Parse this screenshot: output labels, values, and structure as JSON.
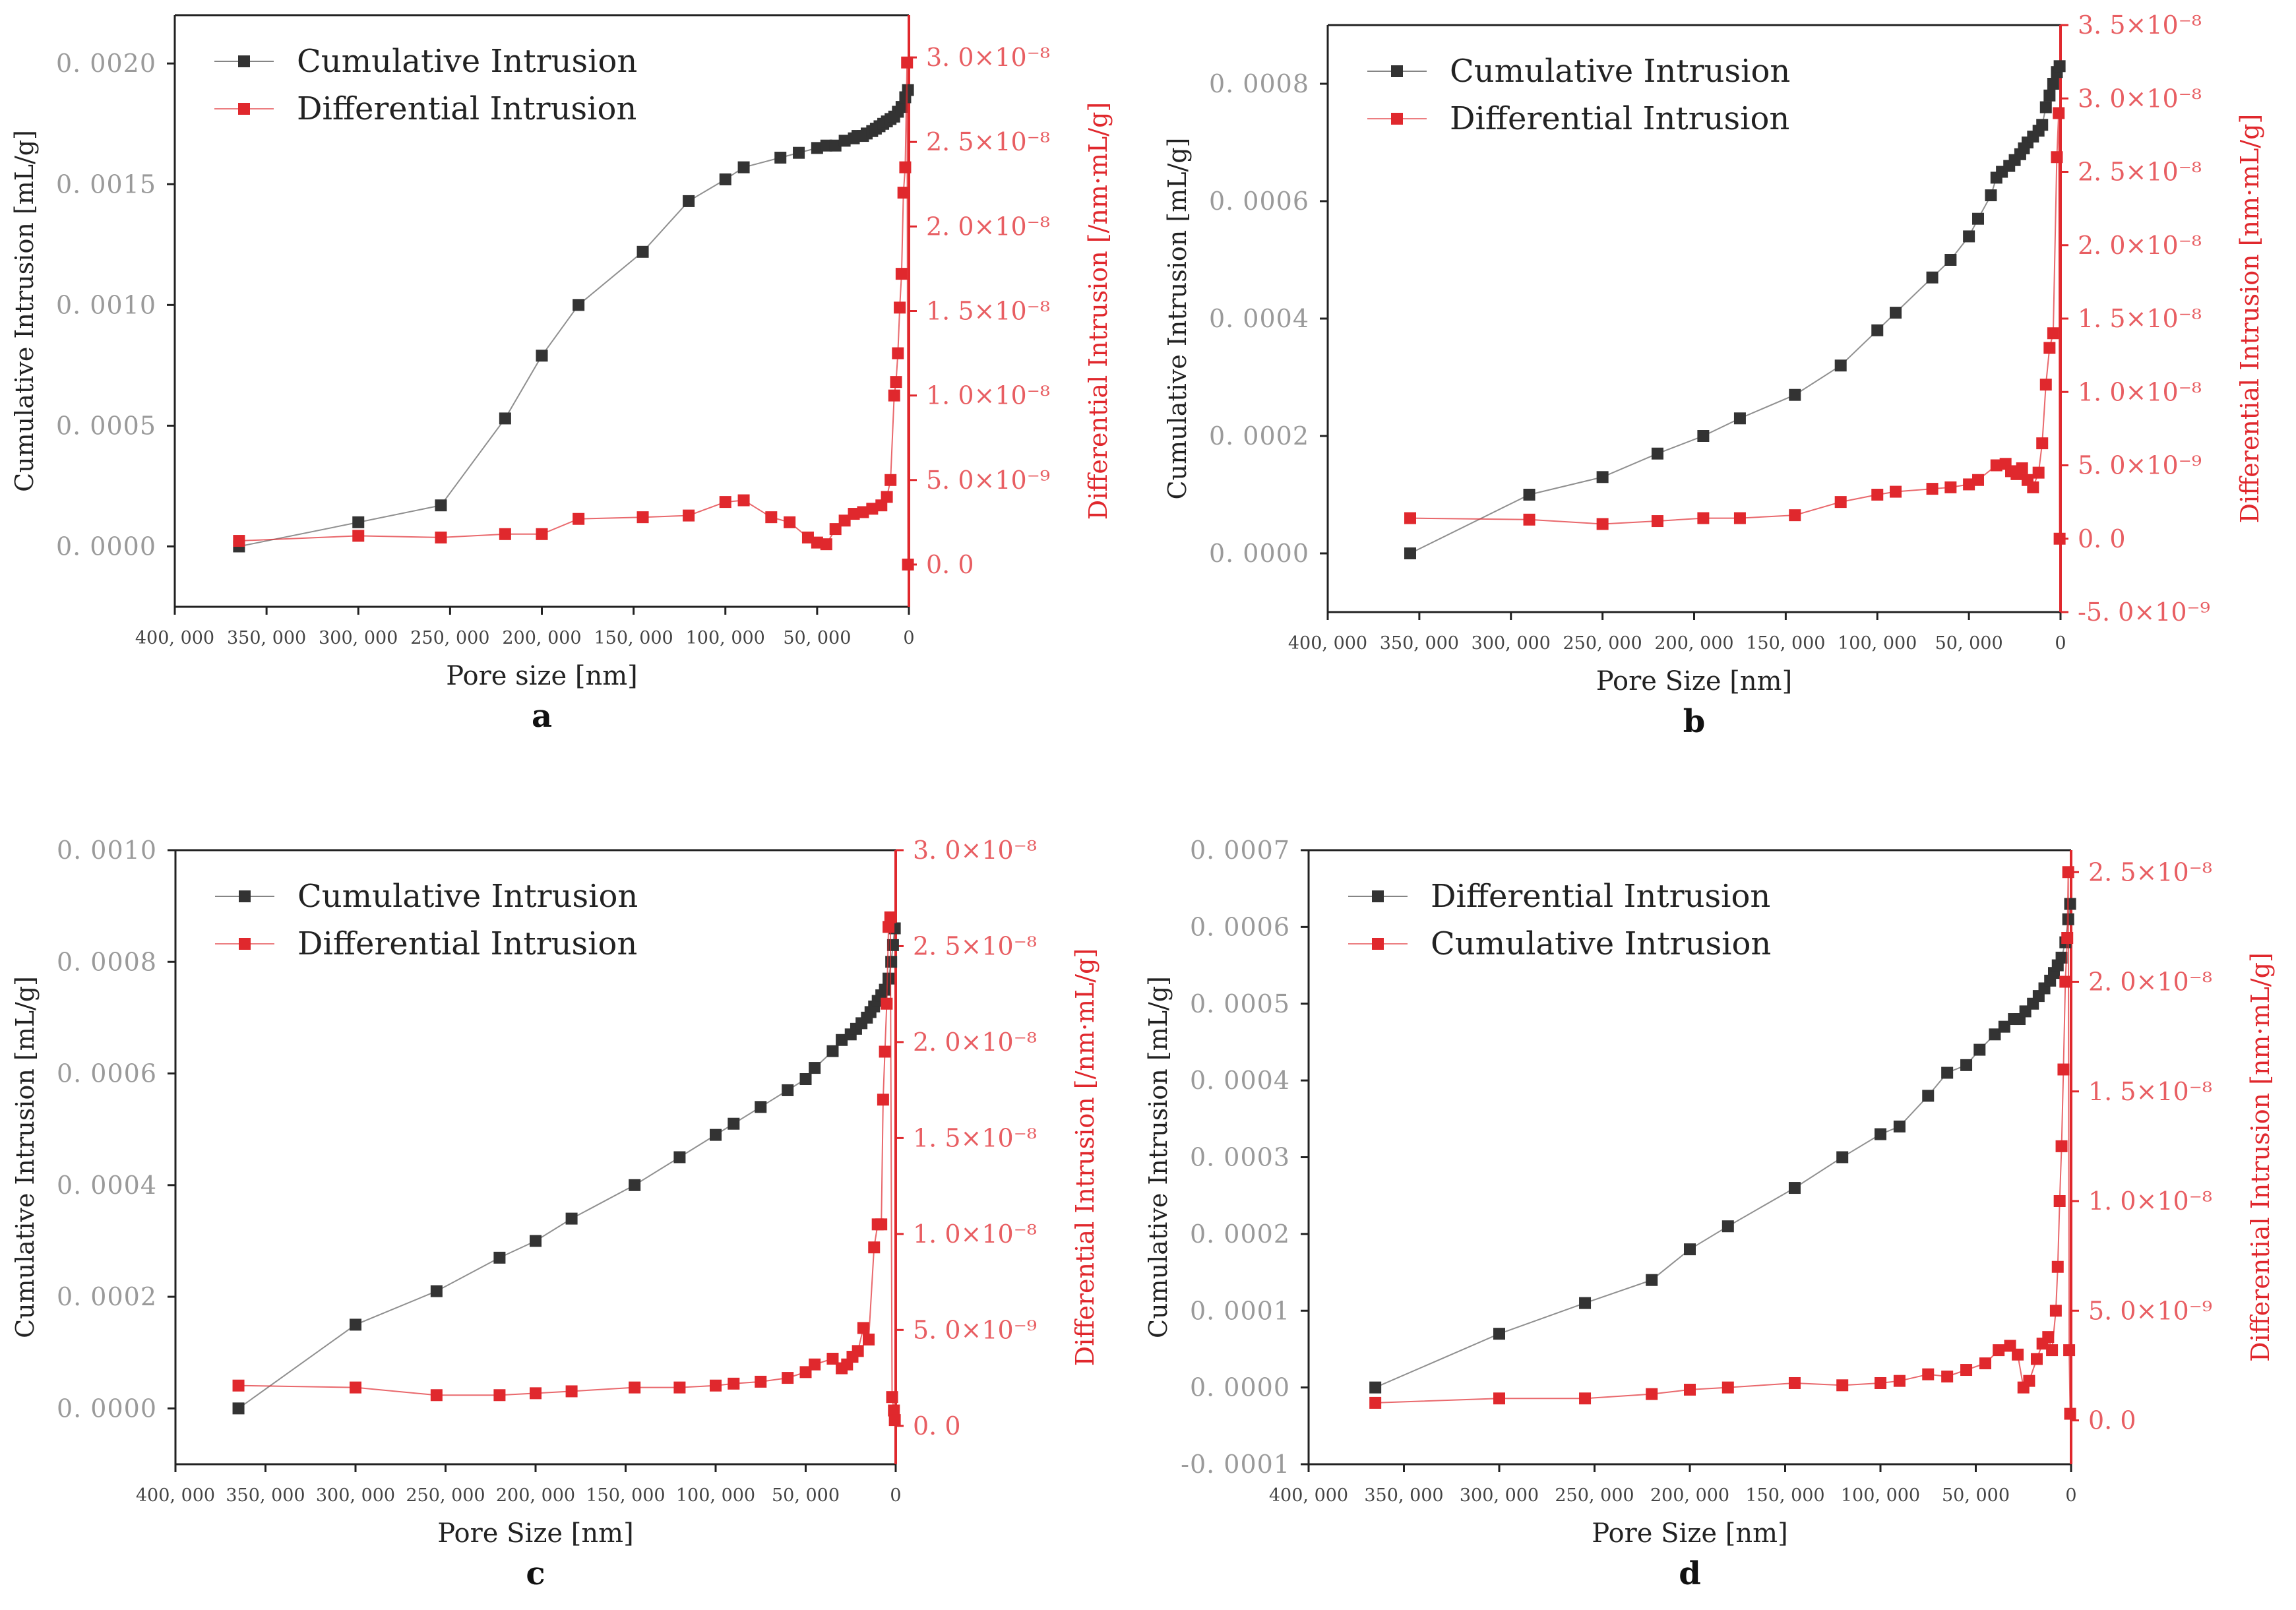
{
  "colors": {
    "cumulative": "#333333",
    "differential": "#e0282d",
    "axis": "#222222",
    "right_axis": "#e0282d",
    "tick_text": "#9a9a9a"
  },
  "chart_data": [
    {
      "type": "scatter",
      "panel_label": "a",
      "xlabel": "Pore size [nm]",
      "ylabel_left": "Cumulative Intrusion [mL/g]",
      "ylabel_right": "Differential Intrusion [/nm·mL/g]",
      "xlim": [
        400000,
        0
      ],
      "ylim_left": [
        -0.00025,
        0.0022
      ],
      "ylim_right": [
        -2.5e-09,
        3.25e-08
      ],
      "x_ticks": [
        "400, 000",
        "350, 000",
        "300, 000",
        "250, 000",
        "200, 000",
        "150, 000",
        "100, 000",
        "50, 000",
        "0"
      ],
      "x_tick_values": [
        400000,
        350000,
        300000,
        250000,
        200000,
        150000,
        100000,
        50000,
        0
      ],
      "y_ticks_left": [
        "0. 0000",
        "0. 0005",
        "0. 0010",
        "0. 0015",
        "0. 0020"
      ],
      "y_tick_values_left": [
        0,
        0.0005,
        0.001,
        0.0015,
        0.002
      ],
      "y_ticks_right": [
        "0. 0",
        "5. 0×10⁻⁹",
        "1. 0×10⁻⁸",
        "1. 5×10⁻⁸",
        "2. 0×10⁻⁸",
        "2. 5×10⁻⁸",
        "3. 0×10⁻⁸"
      ],
      "y_tick_values_right": [
        0,
        5e-09,
        1e-08,
        1.5e-08,
        2e-08,
        2.5e-08,
        3e-08
      ],
      "legend": [
        "Cumulative Intrusion",
        "Differential Intrusion"
      ],
      "series": [
        {
          "name": "Cumulative Intrusion",
          "axis": "left",
          "x": [
            365000,
            300000,
            255000,
            220000,
            200000,
            180000,
            145000,
            120000,
            100000,
            90000,
            70000,
            60000,
            50000,
            45000,
            40000,
            35000,
            30000,
            28000,
            25000,
            23000,
            20000,
            18000,
            16000,
            14000,
            12000,
            10000,
            8000,
            6000,
            4000,
            2000,
            500
          ],
          "y": [
            0.0,
            0.0001,
            0.00017,
            0.00053,
            0.00079,
            0.001,
            0.00122,
            0.00143,
            0.00152,
            0.00157,
            0.00161,
            0.00163,
            0.00165,
            0.00166,
            0.00166,
            0.00168,
            0.00169,
            0.0017,
            0.0017,
            0.00171,
            0.00172,
            0.00173,
            0.00174,
            0.00175,
            0.00176,
            0.00177,
            0.00178,
            0.0018,
            0.00182,
            0.00186,
            0.00189
          ]
        },
        {
          "name": "Differential Intrusion",
          "axis": "right",
          "x": [
            365000,
            300000,
            255000,
            220000,
            200000,
            180000,
            145000,
            120000,
            100000,
            90000,
            75000,
            65000,
            55000,
            50000,
            45000,
            40000,
            35000,
            30000,
            25000,
            20000,
            15000,
            12000,
            10000,
            8000,
            7000,
            6000,
            5000,
            4000,
            3000,
            2000,
            1000,
            500
          ],
          "y": [
            1.4e-09,
            1.7e-09,
            1.6e-09,
            1.8e-09,
            1.8e-09,
            2.7e-09,
            2.8e-09,
            2.9e-09,
            3.7e-09,
            3.8e-09,
            2.8e-09,
            2.5e-09,
            1.6e-09,
            1.3e-09,
            1.2e-09,
            2.1e-09,
            2.6e-09,
            3e-09,
            3.1e-09,
            3.3e-09,
            3.5e-09,
            4e-09,
            5e-09,
            1e-08,
            1.08e-08,
            1.25e-08,
            1.52e-08,
            1.72e-08,
            2.2e-08,
            2.35e-08,
            2.97e-08,
            0.0
          ]
        }
      ]
    },
    {
      "type": "scatter",
      "panel_label": "b",
      "xlabel": "Pore Size [nm]",
      "ylabel_left": "Cumulative Intrusion [mL/g]",
      "ylabel_right": "Differential Intrusion [nm·mL/g]",
      "xlim": [
        400000,
        0
      ],
      "ylim_left": [
        -0.0001,
        0.0009
      ],
      "ylim_right": [
        -5e-09,
        3.5e-08
      ],
      "x_ticks": [
        "400, 000",
        "350, 000",
        "300, 000",
        "250, 000",
        "200, 000",
        "150, 000",
        "100, 000",
        "50, 000",
        "0"
      ],
      "x_tick_values": [
        400000,
        350000,
        300000,
        250000,
        200000,
        150000,
        100000,
        50000,
        0
      ],
      "y_ticks_left": [
        "0. 0000",
        "0. 0002",
        "0. 0004",
        "0. 0006",
        "0. 0008"
      ],
      "y_tick_values_left": [
        0,
        0.0002,
        0.0004,
        0.0006,
        0.0008
      ],
      "y_ticks_right": [
        "-5. 0×10⁻⁹",
        "0. 0",
        "5. 0×10⁻⁹",
        "1. 0×10⁻⁸",
        "1. 5×10⁻⁸",
        "2. 0×10⁻⁸",
        "2. 5×10⁻⁸",
        "3. 0×10⁻⁸",
        "3. 5×10⁻⁸"
      ],
      "y_tick_values_right": [
        -5e-09,
        0,
        5e-09,
        1e-08,
        1.5e-08,
        2e-08,
        2.5e-08,
        3e-08,
        3.5e-08
      ],
      "legend": [
        "Cumulative Intrusion",
        "Differential Intrusion"
      ],
      "series": [
        {
          "name": "Cumulative Intrusion",
          "axis": "left",
          "x": [
            355000,
            290000,
            250000,
            220000,
            195000,
            175000,
            145000,
            120000,
            100000,
            90000,
            70000,
            60000,
            50000,
            45000,
            38000,
            35000,
            32000,
            28000,
            25000,
            22000,
            20000,
            18000,
            15000,
            12000,
            10000,
            8000,
            6000,
            4000,
            2000,
            500
          ],
          "y": [
            0.0,
            0.0001,
            0.00013,
            0.00017,
            0.0002,
            0.00023,
            0.00027,
            0.00032,
            0.00038,
            0.00041,
            0.00047,
            0.0005,
            0.00054,
            0.00057,
            0.00061,
            0.00064,
            0.00065,
            0.00066,
            0.00067,
            0.00068,
            0.00069,
            0.0007,
            0.00071,
            0.00072,
            0.00073,
            0.00076,
            0.00078,
            0.0008,
            0.00082,
            0.00083
          ]
        },
        {
          "name": "Differential Intrusion",
          "axis": "right",
          "x": [
            355000,
            290000,
            250000,
            220000,
            195000,
            175000,
            145000,
            120000,
            100000,
            90000,
            70000,
            60000,
            50000,
            45000,
            35000,
            30000,
            27000,
            24000,
            21000,
            18000,
            15000,
            12000,
            10000,
            8000,
            6000,
            4000,
            2000,
            1000,
            500
          ],
          "y": [
            1.4e-09,
            1.3e-09,
            1e-09,
            1.2e-09,
            1.4e-09,
            1.4e-09,
            1.6e-09,
            2.5e-09,
            3e-09,
            3.2e-09,
            3.4e-09,
            3.5e-09,
            3.7e-09,
            4e-09,
            5e-09,
            5.1e-09,
            4.6e-09,
            4.4e-09,
            4.8e-09,
            4e-09,
            3.5e-09,
            4.5e-09,
            6.5e-09,
            1.05e-08,
            1.3e-08,
            1.4e-08,
            2.6e-08,
            2.9e-08,
            0.0
          ]
        }
      ]
    },
    {
      "type": "scatter",
      "panel_label": "c",
      "xlabel": "Pore Size [nm]",
      "ylabel_left": "Cumulative Intrusion [mL/g]",
      "ylabel_right": "Differential Intrusion [/nm·mL/g]",
      "xlim": [
        400000,
        0
      ],
      "ylim_left": [
        -0.0001,
        0.001
      ],
      "ylim_right": [
        -2e-09,
        3e-08
      ],
      "x_ticks": [
        "400, 000",
        "350, 000",
        "300, 000",
        "250, 000",
        "200, 000",
        "150, 000",
        "100, 000",
        "50, 000",
        "0"
      ],
      "x_tick_values": [
        400000,
        350000,
        300000,
        250000,
        200000,
        150000,
        100000,
        50000,
        0
      ],
      "y_ticks_left": [
        "0. 0000",
        "0. 0002",
        "0. 0004",
        "0. 0006",
        "0. 0008",
        "0. 0010"
      ],
      "y_tick_values_left": [
        0,
        0.0002,
        0.0004,
        0.0006,
        0.0008,
        0.001
      ],
      "y_ticks_right": [
        "0. 0",
        "5. 0×10⁻⁹",
        "1. 0×10⁻⁸",
        "1. 5×10⁻⁸",
        "2. 0×10⁻⁸",
        "2. 5×10⁻⁸",
        "3. 0×10⁻⁸"
      ],
      "y_tick_values_right": [
        0,
        5e-09,
        1e-08,
        1.5e-08,
        2e-08,
        2.5e-08,
        3e-08
      ],
      "legend": [
        "Cumulative Intrusion",
        "Differential Intrusion"
      ],
      "series": [
        {
          "name": "Cumulative Intrusion",
          "axis": "left",
          "x": [
            365000,
            300000,
            255000,
            220000,
            200000,
            180000,
            145000,
            120000,
            100000,
            90000,
            75000,
            60000,
            50000,
            45000,
            35000,
            30000,
            25000,
            22000,
            19000,
            16000,
            14000,
            12000,
            10000,
            8000,
            6000,
            4000,
            2500,
            1500,
            500
          ],
          "y": [
            0.0,
            0.00015,
            0.00021,
            0.00027,
            0.0003,
            0.00034,
            0.0004,
            0.00045,
            0.00049,
            0.00051,
            0.00054,
            0.00057,
            0.00059,
            0.00061,
            0.00064,
            0.00066,
            0.00067,
            0.00068,
            0.00069,
            0.0007,
            0.00071,
            0.00072,
            0.00073,
            0.00074,
            0.00075,
            0.00077,
            0.0008,
            0.00083,
            0.00086
          ]
        },
        {
          "name": "Differential Intrusion",
          "axis": "right",
          "x": [
            365000,
            300000,
            255000,
            220000,
            200000,
            180000,
            145000,
            120000,
            100000,
            90000,
            75000,
            60000,
            50000,
            45000,
            35000,
            30000,
            27000,
            24000,
            21000,
            18000,
            15000,
            12000,
            10000,
            8000,
            7000,
            6000,
            5000,
            4000,
            3000,
            2000,
            1000,
            500
          ],
          "y": [
            2.1e-09,
            2e-09,
            1.6e-09,
            1.6e-09,
            1.7e-09,
            1.8e-09,
            2e-09,
            2e-09,
            2.1e-09,
            2.2e-09,
            2.3e-09,
            2.5e-09,
            2.8e-09,
            3.2e-09,
            3.5e-09,
            3e-09,
            3.2e-09,
            3.6e-09,
            3.9e-09,
            5.1e-09,
            4.5e-09,
            9.3e-09,
            1.05e-08,
            1.05e-08,
            1.7e-08,
            1.95e-08,
            2.2e-08,
            2.6e-08,
            2.65e-08,
            1.5e-09,
            8e-10,
            3e-10
          ]
        }
      ]
    },
    {
      "type": "scatter",
      "panel_label": "d",
      "xlabel": "Pore Size [nm]",
      "ylabel_left": "Cumulative Intrusion [mL/g]",
      "ylabel_right": "Differential Intrusion [nm·mL/g]",
      "xlim": [
        400000,
        0
      ],
      "ylim_left": [
        -0.0001,
        0.0007
      ],
      "ylim_right": [
        -2e-09,
        2.6e-08
      ],
      "x_ticks": [
        "400, 000",
        "350, 000",
        "300, 000",
        "250, 000",
        "200, 000",
        "150, 000",
        "100, 000",
        "50, 000",
        "0"
      ],
      "x_tick_values": [
        400000,
        350000,
        300000,
        250000,
        200000,
        150000,
        100000,
        50000,
        0
      ],
      "y_ticks_left": [
        "-0. 0001",
        "0. 0000",
        "0. 0001",
        "0. 0002",
        "0. 0003",
        "0. 0004",
        "0. 0005",
        "0. 0006",
        "0. 0007"
      ],
      "y_tick_values_left": [
        -0.0001,
        0,
        0.0001,
        0.0002,
        0.0003,
        0.0004,
        0.0005,
        0.0006,
        0.0007
      ],
      "y_ticks_right": [
        "0. 0",
        "5. 0×10⁻⁹",
        "1. 0×10⁻⁸",
        "1. 5×10⁻⁸",
        "2. 0×10⁻⁸",
        "2. 5×10⁻⁸"
      ],
      "y_tick_values_right": [
        0,
        5e-09,
        1e-08,
        1.5e-08,
        2e-08,
        2.5e-08
      ],
      "legend": [
        "Differential Intrusion",
        "Cumulative Intrusion"
      ],
      "series": [
        {
          "name": "Differential Intrusion",
          "axis": "left",
          "x": [
            365000,
            300000,
            255000,
            220000,
            200000,
            180000,
            145000,
            120000,
            100000,
            90000,
            75000,
            65000,
            55000,
            48000,
            40000,
            35000,
            30000,
            27000,
            24000,
            20000,
            17000,
            14000,
            11000,
            9000,
            7000,
            5000,
            3000,
            1500,
            500
          ],
          "y": [
            0.0,
            7e-05,
            0.00011,
            0.00014,
            0.00018,
            0.00021,
            0.00026,
            0.0003,
            0.00033,
            0.00034,
            0.00038,
            0.00041,
            0.00042,
            0.00044,
            0.00046,
            0.00047,
            0.00048,
            0.00048,
            0.00049,
            0.0005,
            0.00051,
            0.00052,
            0.00053,
            0.00054,
            0.00055,
            0.00056,
            0.00058,
            0.00061,
            0.00063
          ]
        },
        {
          "name": "Cumulative Intrusion",
          "axis": "right",
          "x": [
            365000,
            300000,
            255000,
            220000,
            200000,
            180000,
            145000,
            120000,
            100000,
            90000,
            75000,
            65000,
            55000,
            45000,
            38000,
            32000,
            28000,
            25000,
            22000,
            18000,
            15000,
            12000,
            10000,
            8000,
            7000,
            6000,
            5000,
            4000,
            3000,
            2000,
            1500,
            1000,
            500
          ],
          "y": [
            8e-10,
            1e-09,
            1e-09,
            1.2e-09,
            1.4e-09,
            1.5e-09,
            1.7e-09,
            1.6e-09,
            1.7e-09,
            1.8e-09,
            2.1e-09,
            2e-09,
            2.3e-09,
            2.6e-09,
            3.2e-09,
            3.4e-09,
            3e-09,
            1.5e-09,
            1.8e-09,
            2.8e-09,
            3.5e-09,
            3.8e-09,
            3.2e-09,
            5e-09,
            7e-09,
            1e-08,
            1.25e-08,
            1.6e-08,
            2e-08,
            2.2e-08,
            2.5e-08,
            3.2e-09,
            3e-10
          ]
        }
      ]
    }
  ]
}
